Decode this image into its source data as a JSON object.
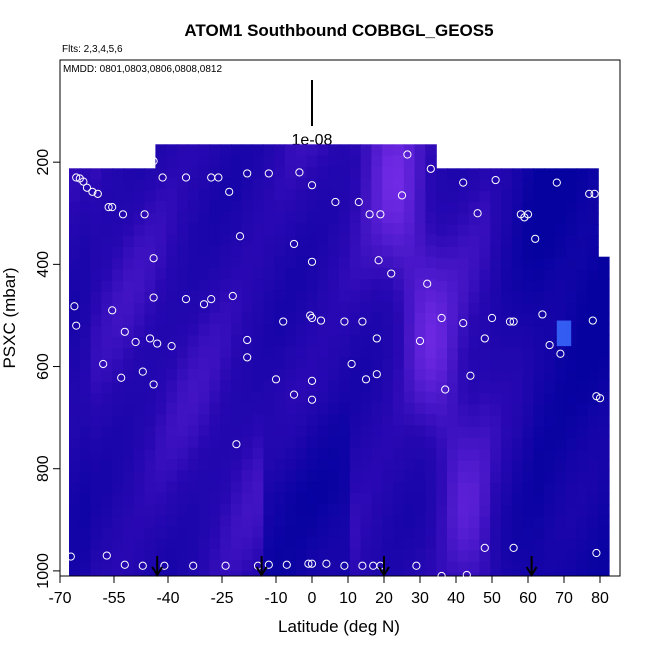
{
  "chart_data": {
    "type": "heatmap",
    "title": "ATOM1 Southbound COBBGL_GEOS5",
    "annotations": [
      "Flts: 2,3,4,5,6",
      "MMDD: 0801,0803,0806,0808,0812"
    ],
    "scale_label": "1e-08",
    "xlabel": "Latitude (deg N)",
    "ylabel": "PSXC (mbar)",
    "xlim": [
      -70,
      82
    ],
    "ylim": [
      1010,
      0
    ],
    "x_ticks": [
      -70,
      -55,
      -40,
      -25,
      -10,
      0,
      10,
      20,
      30,
      40,
      50,
      60,
      70,
      80
    ],
    "x_tick_labels": [
      "-70",
      "-55",
      "-40",
      "-25",
      "-10",
      "0",
      "10",
      "20",
      "30",
      "40",
      "50",
      "60",
      "70",
      "80"
    ],
    "y_ticks": [
      200,
      400,
      600,
      800,
      1000
    ],
    "y_tick_labels": [
      "200",
      "400",
      "600",
      "800",
      "1000"
    ],
    "flight_arrows_lat": [
      -43,
      -14,
      20,
      61
    ],
    "samples": [
      [
        -65.5,
        230
      ],
      [
        -64.5,
        232
      ],
      [
        -63.5,
        238
      ],
      [
        -62.5,
        250
      ],
      [
        -61,
        258
      ],
      [
        -59.5,
        262
      ],
      [
        -56.5,
        288
      ],
      [
        -55.5,
        288
      ],
      [
        -52.5,
        302
      ],
      [
        -46.5,
        302
      ],
      [
        -44,
        198
      ],
      [
        -41.5,
        230
      ],
      [
        -35,
        230
      ],
      [
        -28,
        230
      ],
      [
        -26,
        230
      ],
      [
        -23,
        258
      ],
      [
        -18,
        222
      ],
      [
        -12,
        222
      ],
      [
        -3.5,
        220
      ],
      [
        0,
        245
      ],
      [
        6.5,
        278
      ],
      [
        13,
        278
      ],
      [
        16,
        302
      ],
      [
        19,
        302
      ],
      [
        25,
        265
      ],
      [
        26.5,
        185
      ],
      [
        33,
        213
      ],
      [
        42,
        240
      ],
      [
        51,
        235
      ],
      [
        46,
        300
      ],
      [
        58,
        302
      ],
      [
        60,
        302
      ],
      [
        59,
        308
      ],
      [
        62,
        350
      ],
      [
        68,
        240
      ],
      [
        77,
        262
      ],
      [
        78.5,
        262
      ],
      [
        -20,
        345
      ],
      [
        -5,
        360
      ],
      [
        0,
        395
      ],
      [
        18.5,
        392
      ],
      [
        22,
        418
      ],
      [
        32,
        438
      ],
      [
        -44,
        388
      ],
      [
        -35,
        468
      ],
      [
        -30,
        478
      ],
      [
        -28,
        468
      ],
      [
        -22,
        462
      ],
      [
        -55.5,
        490
      ],
      [
        -66,
        482
      ],
      [
        -65.5,
        520
      ],
      [
        -52,
        532
      ],
      [
        -49,
        552
      ],
      [
        -45,
        545
      ],
      [
        -43,
        555
      ],
      [
        -39,
        560
      ],
      [
        -44,
        465
      ],
      [
        -18,
        548
      ],
      [
        -8,
        512
      ],
      [
        -0.5,
        500
      ],
      [
        0,
        505
      ],
      [
        2.5,
        510
      ],
      [
        9,
        512
      ],
      [
        14,
        512
      ],
      [
        18,
        545
      ],
      [
        30,
        550
      ],
      [
        36,
        505
      ],
      [
        42,
        515
      ],
      [
        48,
        545
      ],
      [
        50,
        505
      ],
      [
        55,
        512
      ],
      [
        56,
        512
      ],
      [
        64,
        498
      ],
      [
        66,
        558
      ],
      [
        69,
        575
      ],
      [
        78,
        510
      ],
      [
        -58,
        595
      ],
      [
        -53,
        622
      ],
      [
        -47,
        610
      ],
      [
        -44,
        635
      ],
      [
        -18,
        582
      ],
      [
        -10,
        625
      ],
      [
        -5,
        655
      ],
      [
        0,
        628
      ],
      [
        0,
        665
      ],
      [
        11,
        595
      ],
      [
        15,
        625
      ],
      [
        18,
        615
      ],
      [
        37,
        645
      ],
      [
        44,
        618
      ],
      [
        -21,
        752
      ],
      [
        79,
        658
      ],
      [
        80,
        662
      ],
      [
        -67,
        972
      ],
      [
        -57,
        970
      ],
      [
        -52,
        988
      ],
      [
        -47,
        990
      ],
      [
        -41,
        990
      ],
      [
        -33,
        990
      ],
      [
        -24,
        990
      ],
      [
        -15,
        990
      ],
      [
        -12,
        988
      ],
      [
        -7,
        988
      ],
      [
        -1,
        986
      ],
      [
        0,
        986
      ],
      [
        4,
        986
      ],
      [
        9,
        990
      ],
      [
        14,
        990
      ],
      [
        17,
        990
      ],
      [
        19,
        990
      ],
      [
        29,
        990
      ],
      [
        36,
        1010
      ],
      [
        43,
        1008
      ],
      [
        48,
        955
      ],
      [
        56,
        955
      ],
      [
        79,
        965
      ]
    ]
  }
}
